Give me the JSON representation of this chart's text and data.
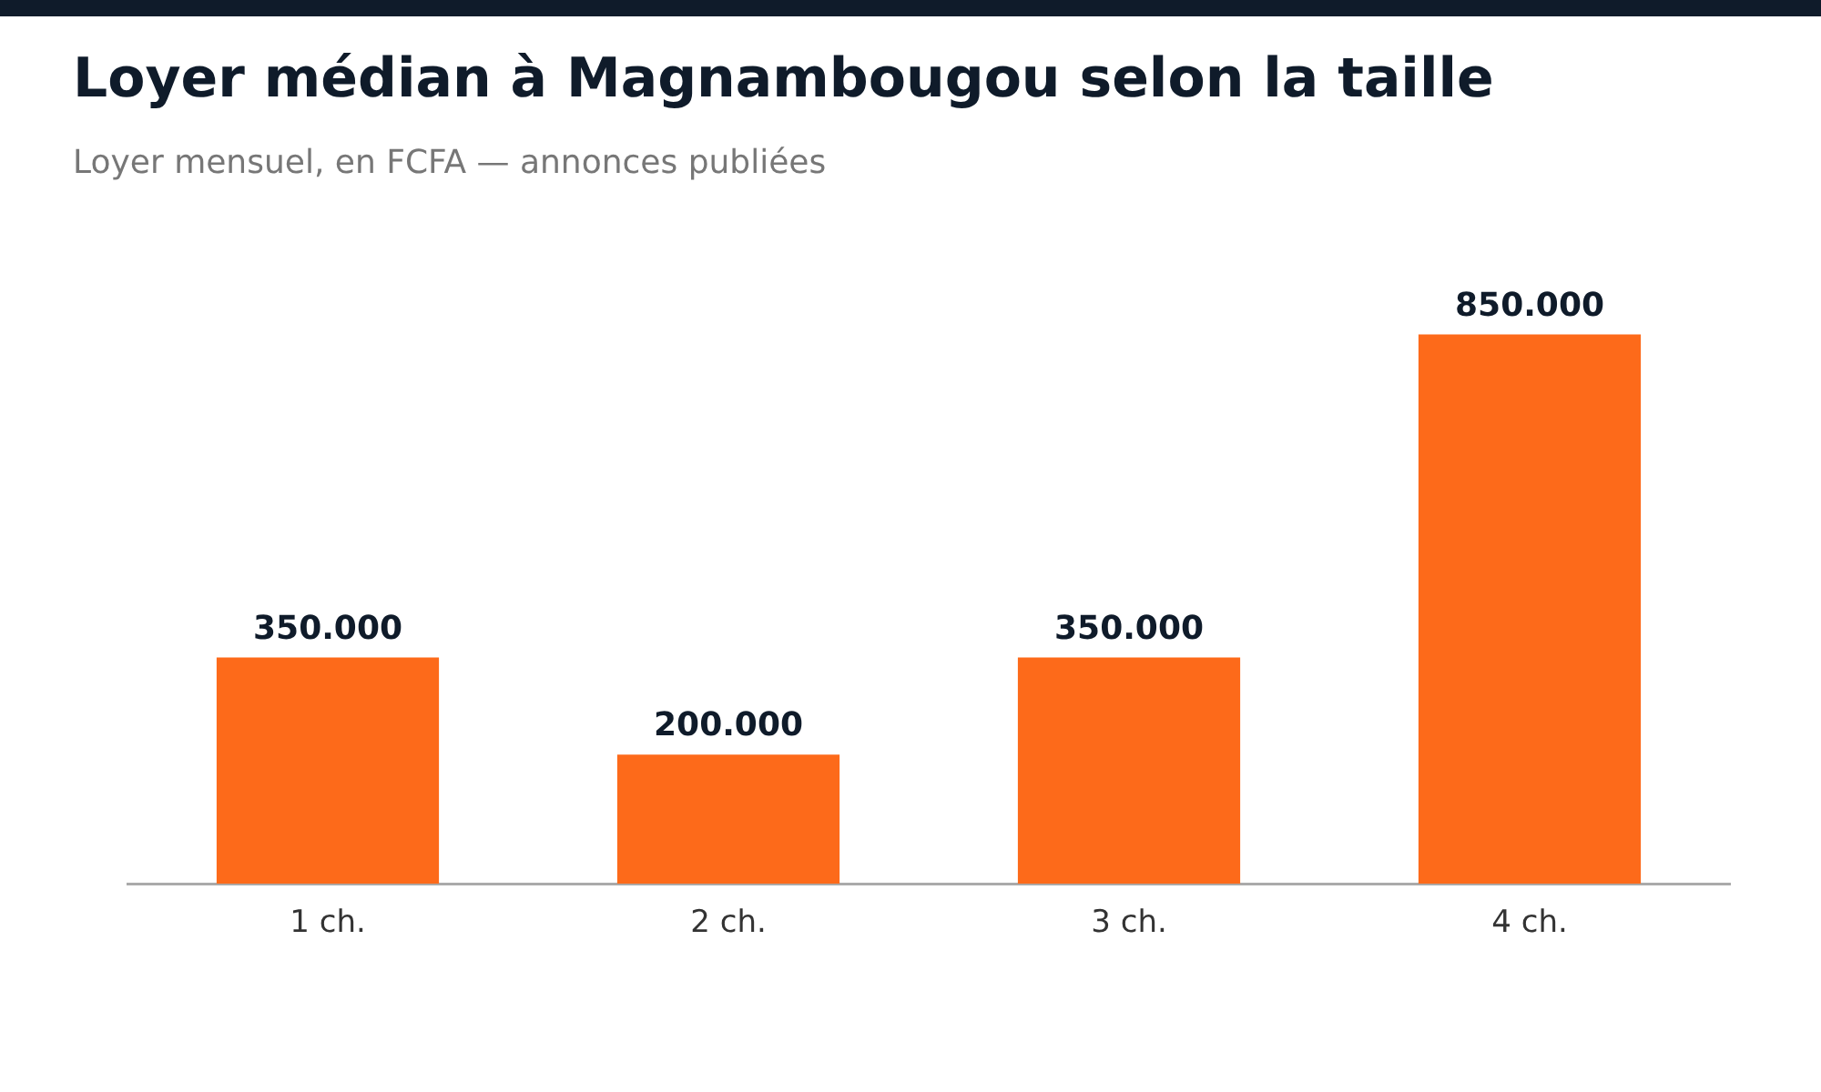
{
  "chart_data": {
    "type": "bar",
    "title": "Loyer médian à Magnambougou selon la taille",
    "subtitle": "Loyer mensuel, en FCFA — annonces publiées",
    "categories": [
      "1 ch.",
      "2 ch.",
      "3 ch.",
      "4 ch."
    ],
    "values": [
      350000,
      200000,
      350000,
      850000
    ],
    "value_labels": [
      "350.000",
      "200.000",
      "350.000",
      "850.000"
    ],
    "color": "#fd6a1a",
    "grid": false,
    "legend": false
  }
}
